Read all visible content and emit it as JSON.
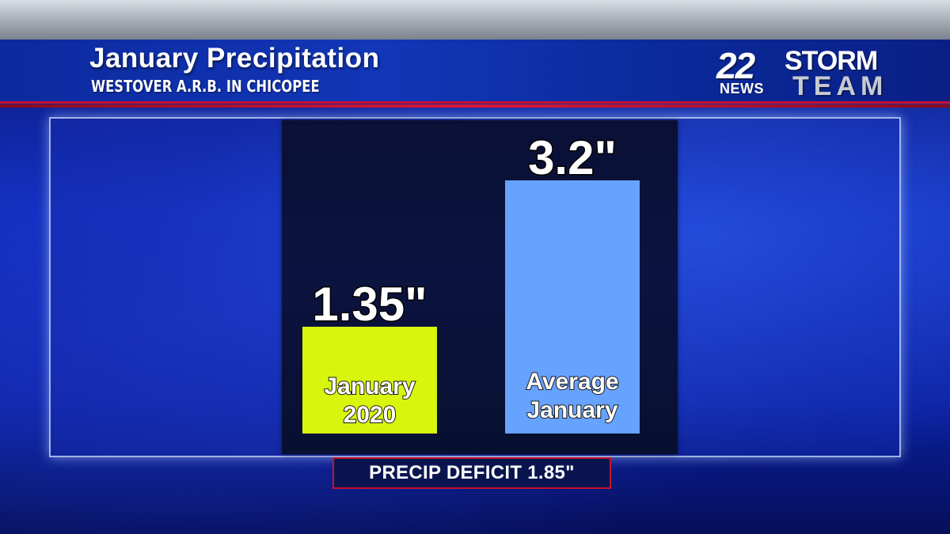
{
  "header": {
    "title": "January Precipitation",
    "subtitle": "WESTOVER A.R.B. IN CHICOPEE"
  },
  "logo": {
    "number": "22",
    "news": "NEWS",
    "storm": "STORM",
    "team": "TEAM"
  },
  "chart_data": {
    "type": "bar",
    "title": "January Precipitation",
    "subtitle": "WESTOVER A.R.B. IN CHICOPEE",
    "categories": [
      [
        "January",
        "2020"
      ],
      [
        "Average",
        "January"
      ]
    ],
    "values": [
      1.35,
      3.2
    ],
    "value_labels": [
      "1.35\"",
      "3.2\""
    ],
    "colors": [
      "#d8f50e",
      "#66a3ff"
    ],
    "label_colors": [
      "#ffffff",
      "#ffffff"
    ],
    "ylim": [
      0,
      3.6
    ],
    "grid": false,
    "legend": "none"
  },
  "footer": {
    "deficit": "PRECIP DEFICIT 1.85\""
  }
}
